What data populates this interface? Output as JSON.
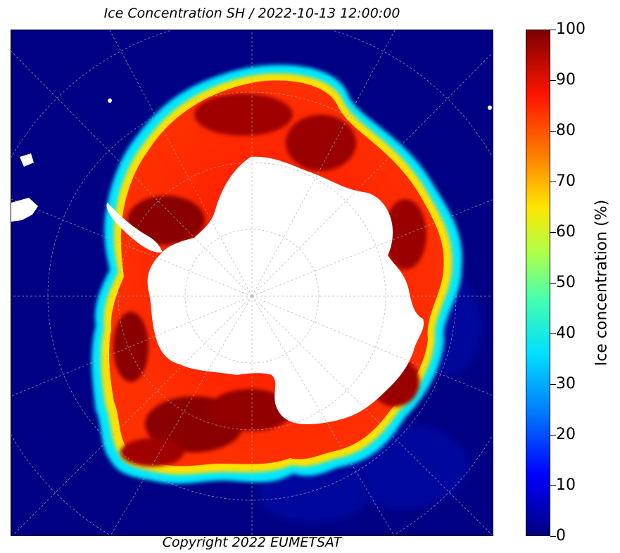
{
  "title": "Ice Concentration SH / 2022-10-13 12:00:00",
  "copyright": "Copyright 2022 EUMETSAT",
  "colorbar": {
    "label": "Ice concentration (%)",
    "ticks": [
      "0",
      "10",
      "20",
      "30",
      "40",
      "50",
      "60",
      "70",
      "80",
      "90",
      "100"
    ],
    "range": [
      0,
      100
    ],
    "colormap": "jet"
  },
  "colors": {
    "ocean": "#000085",
    "ice_high": "#7f0000",
    "ice_mid": "#ff1500",
    "ice_edge": "#00e0ff",
    "land": "#ffffff"
  }
}
